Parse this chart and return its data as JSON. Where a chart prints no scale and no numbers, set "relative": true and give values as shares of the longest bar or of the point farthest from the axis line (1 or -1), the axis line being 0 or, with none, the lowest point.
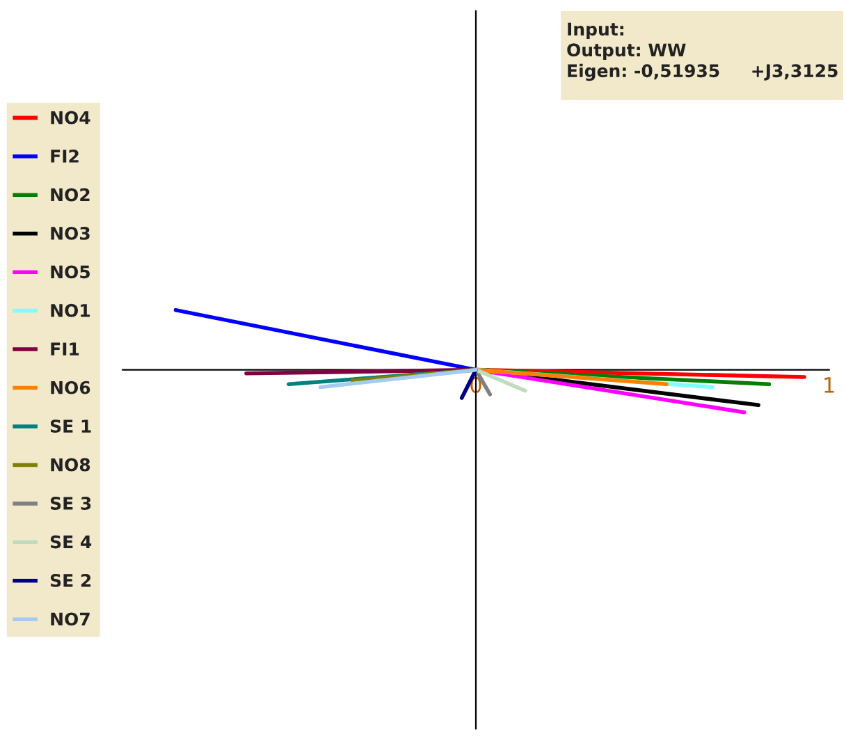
{
  "chart_data": {
    "type": "line",
    "annotations": [
      "Input:",
      "Output: WW",
      "Eigen: -0,51935     +J3,3125"
    ],
    "xlim": [
      -1,
      1
    ],
    "xticks": [
      0,
      1
    ],
    "tick_labels": "x",
    "relative": true,
    "legend": "left",
    "marker": "none",
    "line_style": "solid",
    "series": [
      {
        "name": "NO4",
        "color": "#ff0000",
        "x": [
          0,
          0.93
        ],
        "values": [
          0,
          -0.12
        ]
      },
      {
        "name": "FI2",
        "color": "#0000ff",
        "x": [
          0,
          -0.85
        ],
        "values": [
          0,
          1
        ]
      },
      {
        "name": "NO2",
        "color": "#008000",
        "x": [
          0,
          0.83
        ],
        "values": [
          0,
          -0.24
        ]
      },
      {
        "name": "NO3",
        "color": "#000000",
        "x": [
          0,
          0.8
        ],
        "values": [
          0,
          -0.59
        ]
      },
      {
        "name": "NO5",
        "color": "#ff00ff",
        "x": [
          0,
          0.76
        ],
        "values": [
          0,
          -0.71
        ]
      },
      {
        "name": "NO1",
        "color": "#80ffff",
        "x": [
          0,
          0.67
        ],
        "values": [
          0,
          -0.29
        ]
      },
      {
        "name": "FI1",
        "color": "#800040",
        "x": [
          0,
          -0.65
        ],
        "values": [
          0,
          -0.06
        ]
      },
      {
        "name": "NO6",
        "color": "#ff8000",
        "x": [
          0,
          0.54
        ],
        "values": [
          0,
          -0.24
        ]
      },
      {
        "name": "SE 1",
        "color": "#008080",
        "x": [
          0,
          -0.53
        ],
        "values": [
          0,
          -0.24
        ]
      },
      {
        "name": "NO8",
        "color": "#808000",
        "x": [
          0,
          -0.35
        ],
        "values": [
          0,
          -0.18
        ]
      },
      {
        "name": "SE 3",
        "color": "#808080",
        "x": [
          0,
          0.04
        ],
        "values": [
          0,
          -0.41
        ]
      },
      {
        "name": "SE 4",
        "color": "#c0dcc0",
        "x": [
          0,
          0.14
        ],
        "values": [
          0,
          -0.35
        ]
      },
      {
        "name": "SE 2",
        "color": "#000080",
        "x": [
          0,
          -0.04
        ],
        "values": [
          0,
          -0.47
        ]
      },
      {
        "name": "NO7",
        "color": "#a6caf0",
        "x": [
          0,
          -0.44
        ],
        "values": [
          0,
          -0.29
        ]
      }
    ]
  }
}
